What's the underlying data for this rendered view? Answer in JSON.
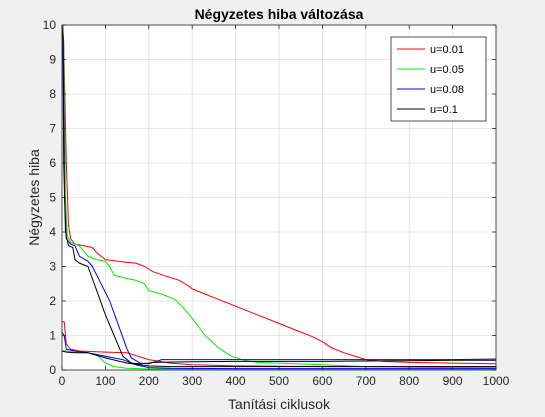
{
  "chart_data": {
    "type": "line",
    "title": "Négyzetes hiba változása",
    "xlabel": "Tanítási ciklusok",
    "ylabel": "Négyzetes hiba",
    "xlim": [
      0,
      1000
    ],
    "ylim": [
      0,
      10
    ],
    "xticks": [
      "0",
      "100",
      "200",
      "300",
      "400",
      "500",
      "600",
      "700",
      "800",
      "900",
      "1000"
    ],
    "yticks": [
      "0",
      "1",
      "2",
      "3",
      "4",
      "5",
      "6",
      "7",
      "8",
      "9",
      "10"
    ],
    "grid": true,
    "legend_position": "top-right",
    "series": [
      {
        "name": "u=0.01",
        "color": "#ff0000",
        "segments": [
          [
            [
              2,
              10
            ],
            [
              4,
              9.5
            ],
            [
              10,
              6
            ],
            [
              15,
              4.2
            ],
            [
              20,
              3.8
            ],
            [
              30,
              3.65
            ],
            [
              50,
              3.6
            ],
            [
              70,
              3.55
            ],
            [
              80,
              3.4
            ],
            [
              100,
              3.2
            ],
            [
              130,
              3.15
            ],
            [
              150,
              3.12
            ],
            [
              170,
              3.1
            ],
            [
              190,
              3.0
            ],
            [
              210,
              2.85
            ],
            [
              240,
              2.72
            ],
            [
              270,
              2.6
            ],
            [
              290,
              2.45
            ],
            [
              300,
              2.35
            ],
            [
              330,
              2.2
            ],
            [
              360,
              2.05
            ],
            [
              400,
              1.85
            ],
            [
              450,
              1.6
            ],
            [
              500,
              1.35
            ],
            [
              550,
              1.1
            ],
            [
              580,
              0.95
            ],
            [
              600,
              0.82
            ],
            [
              620,
              0.65
            ],
            [
              650,
              0.5
            ],
            [
              680,
              0.38
            ],
            [
              700,
              0.3
            ],
            [
              740,
              0.25
            ],
            [
              800,
              0.22
            ],
            [
              900,
              0.2
            ],
            [
              1000,
              0.18
            ]
          ],
          [
            [
              0,
              1.4
            ],
            [
              5,
              1.4
            ],
            [
              10,
              0.75
            ],
            [
              20,
              0.6
            ],
            [
              40,
              0.55
            ],
            [
              100,
              0.52
            ],
            [
              150,
              0.5
            ],
            [
              200,
              0.3
            ],
            [
              250,
              0.2
            ],
            [
              300,
              0.15
            ],
            [
              400,
              0.12
            ],
            [
              600,
              0.1
            ],
            [
              800,
              0.1
            ],
            [
              1000,
              0.1
            ]
          ]
        ]
      },
      {
        "name": "u=0.05",
        "color": "#00ee00",
        "segments": [
          [
            [
              1,
              10
            ],
            [
              4,
              9.3
            ],
            [
              8,
              5
            ],
            [
              12,
              3.9
            ],
            [
              20,
              3.7
            ],
            [
              40,
              3.6
            ],
            [
              60,
              3.3
            ],
            [
              80,
              3.2
            ],
            [
              100,
              3.15
            ],
            [
              110,
              3.0
            ],
            [
              120,
              2.75
            ],
            [
              150,
              2.65
            ],
            [
              170,
              2.6
            ],
            [
              190,
              2.5
            ],
            [
              200,
              2.3
            ],
            [
              230,
              2.2
            ],
            [
              260,
              2.05
            ],
            [
              280,
              1.8
            ],
            [
              300,
              1.5
            ],
            [
              330,
              1.0
            ],
            [
              360,
              0.65
            ],
            [
              390,
              0.4
            ],
            [
              420,
              0.28
            ],
            [
              450,
              0.22
            ],
            [
              500,
              0.2
            ],
            [
              600,
              0.15
            ],
            [
              700,
              0.1
            ],
            [
              800,
              0.08
            ],
            [
              1000,
              0.06
            ]
          ],
          [
            [
              0,
              0.55
            ],
            [
              10,
              0.55
            ],
            [
              30,
              0.52
            ],
            [
              60,
              0.5
            ],
            [
              80,
              0.45
            ],
            [
              100,
              0.2
            ],
            [
              120,
              0.1
            ],
            [
              150,
              0.05
            ],
            [
              200,
              0.03
            ],
            [
              400,
              0.03
            ],
            [
              1000,
              0.03
            ]
          ]
        ]
      },
      {
        "name": "u=0.08",
        "color": "#0000ff",
        "segments": [
          [
            [
              0,
              10
            ],
            [
              3,
              9.5
            ],
            [
              6,
              5
            ],
            [
              10,
              3.8
            ],
            [
              20,
              3.65
            ],
            [
              30,
              3.6
            ],
            [
              40,
              3.3
            ],
            [
              60,
              3.15
            ],
            [
              70,
              3.0
            ],
            [
              90,
              2.5
            ],
            [
              110,
              2.0
            ],
            [
              130,
              1.3
            ],
            [
              150,
              0.6
            ],
            [
              160,
              0.35
            ],
            [
              180,
              0.2
            ],
            [
              200,
              0.18
            ],
            [
              230,
              0.3
            ],
            [
              300,
              0.3
            ],
            [
              400,
              0.3
            ],
            [
              500,
              0.3
            ],
            [
              600,
              0.3
            ],
            [
              700,
              0.3
            ],
            [
              800,
              0.3
            ],
            [
              900,
              0.3
            ],
            [
              1000,
              0.32
            ]
          ],
          [
            [
              0,
              1.1
            ],
            [
              5,
              1.0
            ],
            [
              10,
              0.6
            ],
            [
              30,
              0.55
            ],
            [
              60,
              0.5
            ],
            [
              100,
              0.4
            ],
            [
              140,
              0.3
            ],
            [
              170,
              0.15
            ],
            [
              200,
              0.07
            ],
            [
              250,
              0.05
            ],
            [
              400,
              0.04
            ],
            [
              700,
              0.04
            ],
            [
              1000,
              0.04
            ]
          ]
        ]
      },
      {
        "name": "u=0.1",
        "color": "#000000",
        "segments": [
          [
            [
              0,
              10
            ],
            [
              2,
              9.5
            ],
            [
              4,
              6
            ],
            [
              8,
              4.0
            ],
            [
              15,
              3.6
            ],
            [
              25,
              3.55
            ],
            [
              30,
              3.2
            ],
            [
              40,
              3.1
            ],
            [
              60,
              3.0
            ],
            [
              80,
              2.3
            ],
            [
              100,
              1.6
            ],
            [
              120,
              1.0
            ],
            [
              140,
              0.4
            ],
            [
              160,
              0.2
            ],
            [
              180,
              0.18
            ],
            [
              200,
              0.2
            ],
            [
              210,
              0.22
            ],
            [
              300,
              0.24
            ],
            [
              400,
              0.25
            ],
            [
              500,
              0.25
            ],
            [
              600,
              0.25
            ],
            [
              700,
              0.26
            ],
            [
              800,
              0.27
            ],
            [
              900,
              0.28
            ],
            [
              1000,
              0.28
            ]
          ],
          [
            [
              0,
              0.55
            ],
            [
              10,
              0.52
            ],
            [
              30,
              0.5
            ],
            [
              60,
              0.5
            ],
            [
              100,
              0.35
            ],
            [
              150,
              0.2
            ],
            [
              200,
              0.12
            ],
            [
              250,
              0.1
            ],
            [
              400,
              0.1
            ],
            [
              700,
              0.1
            ],
            [
              1000,
              0.1
            ]
          ]
        ]
      }
    ]
  }
}
